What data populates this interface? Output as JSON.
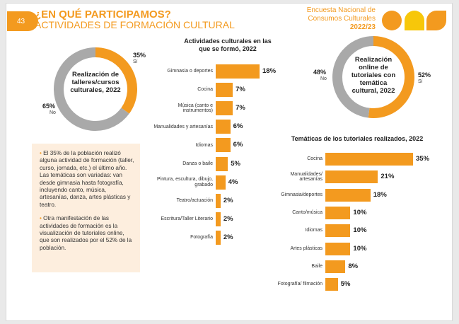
{
  "header": {
    "page_number": "43",
    "title": "¿EN QUÉ PARTICIPAMOS?",
    "subtitle": "ACTIVIDADES DE FORMACIÓN CULTURAL",
    "survey_line1": "Encuesta Nacional de",
    "survey_line2": "Consumos Culturales",
    "survey_year": "2022/23"
  },
  "colors": {
    "orange": "#f39a1f",
    "gray": "#a9a9a9",
    "yellow": "#f7c70a"
  },
  "info": {
    "p1": "El 35% de la población realizó alguna actividad de formación (taller, curso, jornada, etc.) el último año. Las temáticas son variadas: van desde gimnasia hasta fotografía, incluyendo canto, música, artesanías, danza, artes plásticas y teatro.",
    "p2": "Otra manifestación de las actividades de formación es la visualización de tutoriales online, que son realizados por el 52% de la población."
  },
  "chart_data": [
    {
      "type": "pie",
      "center_label": "Realización de talleres/cursos culturales, 2022",
      "slices": [
        {
          "name": "Sí",
          "value": 35,
          "label": "35%"
        },
        {
          "name": "No",
          "value": 65,
          "label": "65%"
        }
      ]
    },
    {
      "type": "bar",
      "title": "Actividades culturales en las que se formó, 2022",
      "categories": [
        "Gimnasia o deportes",
        "Cocina",
        "Música (canto e instrumentos)",
        "Manualidades y artesanías",
        "Idiomas",
        "Danza o baile",
        "Pintura, escultura, dibujo, grabado",
        "Teatro/actuación",
        "Escritura/Taller Literario",
        "Fotografía"
      ],
      "values": [
        18,
        7,
        7,
        6,
        6,
        5,
        4,
        2,
        2,
        2
      ],
      "value_labels": [
        "18%",
        "7%",
        "7%",
        "6%",
        "6%",
        "5%",
        "4%",
        "2%",
        "2%",
        "2%"
      ]
    },
    {
      "type": "pie",
      "center_label": "Realización online de tutoriales con temática cultural, 2022",
      "slices": [
        {
          "name": "Sí",
          "value": 52,
          "label": "52%"
        },
        {
          "name": "No",
          "value": 48,
          "label": "48%"
        }
      ]
    },
    {
      "type": "bar",
      "title": "Temáticas de los tutoriales realizados, 2022",
      "categories": [
        "Cocina",
        "Manualidades/ artesanías",
        "Gimnasia/deportes",
        "Canto/música",
        "Idiomas",
        "Artes plásticas",
        "Baile",
        "Fotografía/ filmación"
      ],
      "values": [
        35,
        21,
        18,
        10,
        10,
        10,
        8,
        5
      ],
      "value_labels": [
        "35%",
        "21%",
        "18%",
        "10%",
        "10%",
        "10%",
        "8%",
        "5%"
      ]
    }
  ]
}
